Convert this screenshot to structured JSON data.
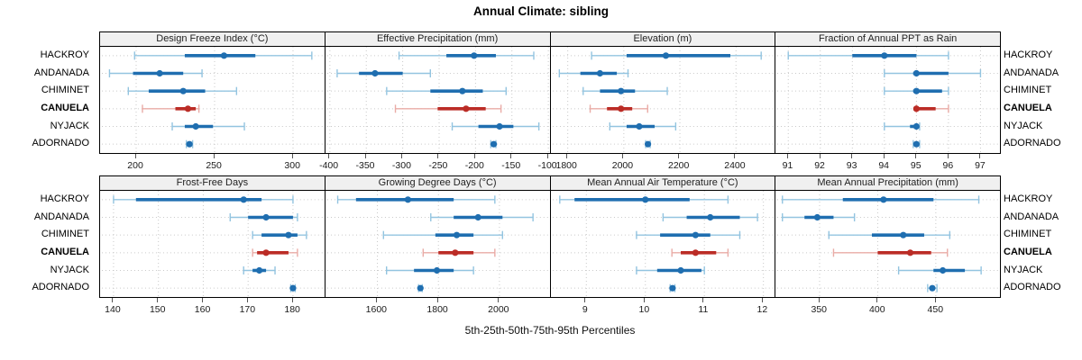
{
  "title": "Annual Climate: sibling",
  "caption": "5th-25th-50th-75th-95th Percentiles",
  "sites": [
    "HACKROY",
    "ANDANADA",
    "CHIMINET",
    "CANUELA",
    "NYJACK",
    "ADORNADO"
  ],
  "highlight_site": "CANUELA",
  "colors": {
    "blue": "#1f6eb0",
    "blue_light": "#93c4e0",
    "red": "#bb2c26",
    "red_light": "#e9aba6",
    "grid": "#c9c9c9",
    "strip_bg": "#f0f0f0",
    "border": "#000000",
    "tick": "#555555"
  },
  "chart_data": [
    {
      "type": "dotplot-percentiles",
      "row": "top",
      "title": "Design Freeze Index (°C)",
      "xlim": [
        177,
        320
      ],
      "ticks": [
        200,
        250,
        300
      ],
      "series": [
        {
          "site": "HACKROY",
          "p": [
            199,
            231,
            256,
            276,
            312
          ]
        },
        {
          "site": "ANDANADA",
          "p": [
            183,
            198,
            215,
            230,
            242
          ]
        },
        {
          "site": "CHIMINET",
          "p": [
            195,
            208,
            230,
            244,
            264
          ]
        },
        {
          "site": "CANUELA",
          "p": [
            204,
            225,
            233,
            238,
            240
          ]
        },
        {
          "site": "NYJACK",
          "p": [
            223,
            231,
            238,
            249,
            269
          ]
        },
        {
          "site": "ADORNADO",
          "p": [
            232,
            233,
            234,
            235,
            236
          ]
        }
      ]
    },
    {
      "type": "dotplot-percentiles",
      "row": "top",
      "title": "Effective Precipitation (mm)",
      "xlim": [
        -406,
        -98
      ],
      "ticks": [
        -400,
        -350,
        -300,
        -250,
        -200,
        -150,
        -100
      ],
      "series": [
        {
          "site": "HACKROY",
          "p": [
            -305,
            -240,
            -202,
            -172,
            -120
          ]
        },
        {
          "site": "ANDANADA",
          "p": [
            -390,
            -360,
            -338,
            -300,
            -262
          ]
        },
        {
          "site": "CHIMINET",
          "p": [
            -322,
            -262,
            -218,
            -190,
            -158
          ]
        },
        {
          "site": "CANUELA",
          "p": [
            -310,
            -252,
            -213,
            -186,
            -165
          ]
        },
        {
          "site": "NYJACK",
          "p": [
            -232,
            -196,
            -167,
            -148,
            -113
          ]
        },
        {
          "site": "ADORNADO",
          "p": [
            -179,
            -176,
            -175,
            -174,
            -172
          ]
        }
      ]
    },
    {
      "type": "dotplot-percentiles",
      "row": "top",
      "title": "Elevation (m)",
      "xlim": [
        1740,
        2540
      ],
      "ticks": [
        1800,
        2000,
        2200,
        2400
      ],
      "series": [
        {
          "site": "HACKROY",
          "p": [
            1885,
            2010,
            2150,
            2380,
            2490
          ]
        },
        {
          "site": "ANDANADA",
          "p": [
            1770,
            1845,
            1915,
            1975,
            2015
          ]
        },
        {
          "site": "CHIMINET",
          "p": [
            1855,
            1915,
            1990,
            2040,
            2155
          ]
        },
        {
          "site": "CANUELA",
          "p": [
            1880,
            1940,
            1990,
            2030,
            2085
          ]
        },
        {
          "site": "NYJACK",
          "p": [
            1950,
            2010,
            2055,
            2110,
            2185
          ]
        },
        {
          "site": "ADORNADO",
          "p": [
            2078,
            2083,
            2086,
            2089,
            2094
          ]
        }
      ]
    },
    {
      "type": "dotplot-percentiles",
      "row": "top",
      "title": "Fraction of Annual PPT as Rain",
      "xlim": [
        90.6,
        97.6
      ],
      "ticks": [
        91,
        92,
        93,
        94,
        95,
        96,
        97
      ],
      "series": [
        {
          "site": "HACKROY",
          "p": [
            91,
            93,
            94,
            95,
            96
          ]
        },
        {
          "site": "ANDANADA",
          "p": [
            94,
            94.9,
            95,
            96,
            97
          ]
        },
        {
          "site": "CHIMINET",
          "p": [
            94,
            94.9,
            95,
            95.8,
            96
          ]
        },
        {
          "site": "CANUELA",
          "p": [
            95,
            95,
            95,
            95.6,
            96
          ]
        },
        {
          "site": "NYJACK",
          "p": [
            94,
            94.8,
            95,
            95,
            95.1
          ]
        },
        {
          "site": "ADORNADO",
          "p": [
            94.9,
            95,
            95,
            95,
            95.1
          ]
        }
      ]
    },
    {
      "type": "dotplot-percentiles",
      "row": "bottom",
      "title": "Frost-Free Days",
      "xlim": [
        137,
        187
      ],
      "ticks": [
        140,
        150,
        160,
        170,
        180
      ],
      "series": [
        {
          "site": "HACKROY",
          "p": [
            140,
            145,
            169,
            173,
            180
          ]
        },
        {
          "site": "ANDANADA",
          "p": [
            166,
            170,
            174,
            180,
            181
          ]
        },
        {
          "site": "CHIMINET",
          "p": [
            171,
            173,
            179,
            181,
            183
          ]
        },
        {
          "site": "CANUELA",
          "p": [
            171,
            172,
            174,
            179,
            181
          ]
        },
        {
          "site": "NYJACK",
          "p": [
            169,
            171,
            172.5,
            174,
            176
          ]
        },
        {
          "site": "ADORNADO",
          "p": [
            179.5,
            180,
            180,
            180,
            180.5
          ]
        }
      ]
    },
    {
      "type": "dotplot-percentiles",
      "row": "bottom",
      "title": "Growing Degree Days (°C)",
      "xlim": [
        1430,
        2165
      ],
      "ticks": [
        1600,
        1800,
        2000
      ],
      "series": [
        {
          "site": "HACKROY",
          "p": [
            1470,
            1530,
            1700,
            1850,
            1985
          ]
        },
        {
          "site": "ANDANADA",
          "p": [
            1775,
            1850,
            1930,
            2010,
            2110
          ]
        },
        {
          "site": "CHIMINET",
          "p": [
            1620,
            1790,
            1860,
            1915,
            2010
          ]
        },
        {
          "site": "CANUELA",
          "p": [
            1750,
            1800,
            1855,
            1915,
            1985
          ]
        },
        {
          "site": "NYJACK",
          "p": [
            1630,
            1720,
            1795,
            1850,
            1915
          ]
        },
        {
          "site": "ADORNADO",
          "p": [
            1735,
            1738,
            1741,
            1744,
            1747
          ]
        }
      ]
    },
    {
      "type": "dotplot-percentiles",
      "row": "bottom",
      "title": "Mean Annual Air Temperature (°C)",
      "xlim": [
        8.4,
        12.2
      ],
      "ticks": [
        9,
        10,
        11,
        12
      ],
      "series": [
        {
          "site": "HACKROY",
          "p": [
            8.55,
            8.8,
            10.0,
            10.75,
            11.4
          ]
        },
        {
          "site": "ANDANADA",
          "p": [
            10.3,
            10.7,
            11.1,
            11.6,
            11.9
          ]
        },
        {
          "site": "CHIMINET",
          "p": [
            9.85,
            10.25,
            10.85,
            11.1,
            11.6
          ]
        },
        {
          "site": "CANUELA",
          "p": [
            10.45,
            10.6,
            10.85,
            11.2,
            11.4
          ]
        },
        {
          "site": "NYJACK",
          "p": [
            9.85,
            10.2,
            10.6,
            10.95,
            11.0
          ]
        },
        {
          "site": "ADORNADO",
          "p": [
            10.42,
            10.45,
            10.46,
            10.47,
            10.5
          ]
        }
      ]
    },
    {
      "type": "dotplot-percentiles",
      "row": "bottom",
      "title": "Mean Annual Precipitation (mm)",
      "xlim": [
        312,
        505
      ],
      "ticks": [
        350,
        400,
        450
      ],
      "series": [
        {
          "site": "HACKROY",
          "p": [
            318,
            370,
            405,
            448,
            487
          ]
        },
        {
          "site": "ANDANADA",
          "p": [
            318,
            337,
            348,
            362,
            380
          ]
        },
        {
          "site": "CHIMINET",
          "p": [
            358,
            395,
            422,
            440,
            462
          ]
        },
        {
          "site": "CANUELA",
          "p": [
            362,
            400,
            428,
            446,
            460
          ]
        },
        {
          "site": "NYJACK",
          "p": [
            418,
            448,
            456,
            475,
            489
          ]
        },
        {
          "site": "ADORNADO",
          "p": [
            443,
            446,
            447,
            449,
            451
          ]
        }
      ]
    }
  ]
}
